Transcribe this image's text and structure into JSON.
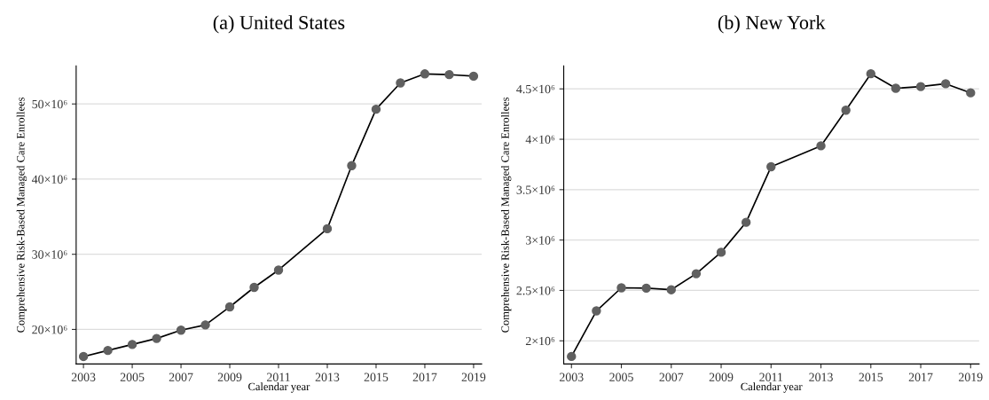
{
  "chart_data": [
    {
      "type": "line",
      "title": "(a) United States",
      "xlabel": "Calendar year",
      "ylabel": "Comprehensive Risk-Based Managed Care Enrollees",
      "x": [
        2003,
        2004,
        2005,
        2006,
        2007,
        2008,
        2009,
        2010,
        2011,
        2013,
        2014,
        2015,
        2016,
        2017,
        2018,
        2019
      ],
      "series": [
        {
          "color": "#606060",
          "values": [
            16400000,
            17200000,
            18000000,
            18800000,
            19900000,
            20600000,
            23000000,
            25600000,
            27900000,
            33400000,
            41800000,
            49300000,
            52800000,
            54000000,
            53900000,
            53700000
          ]
        }
      ],
      "xlim": [
        2002.7,
        2019.33
      ],
      "xticks": [
        2003,
        2005,
        2007,
        2009,
        2011,
        2013,
        2015,
        2017,
        2019
      ],
      "ylim": [
        15400000,
        55050000
      ],
      "yticks": [
        {
          "value": 20000000,
          "label": "20×10⁶"
        },
        {
          "value": 30000000,
          "label": "30×10⁶"
        },
        {
          "value": 40000000,
          "label": "40×10⁶"
        },
        {
          "value": 50000000,
          "label": "50×10⁶"
        }
      ],
      "grid": "y",
      "marker": "circle",
      "line_style": "solid",
      "legend": false
    },
    {
      "type": "line",
      "title": "(b) New York",
      "xlabel": "Calendar year",
      "ylabel": "Comprehensive Risk-Based Managed Care Enrollees",
      "x": [
        2003,
        2004,
        2005,
        2006,
        2007,
        2008,
        2009,
        2010,
        2011,
        2013,
        2014,
        2015,
        2016,
        2017,
        2018,
        2019
      ],
      "series": [
        {
          "color": "#606060",
          "values": [
            1845000,
            2297000,
            2526000,
            2523000,
            2507000,
            2666000,
            2879000,
            3176000,
            3727000,
            3935000,
            4288000,
            4650000,
            4506000,
            4523000,
            4551000,
            4461000
          ]
        }
      ],
      "xlim": [
        2002.69,
        2019.34
      ],
      "xticks": [
        2003,
        2005,
        2007,
        2009,
        2011,
        2013,
        2015,
        2017,
        2019
      ],
      "ylim": [
        1770000,
        4727000
      ],
      "yticks": [
        {
          "value": 2000000,
          "label": "2×10⁶"
        },
        {
          "value": 2500000,
          "label": "2.5×10⁶"
        },
        {
          "value": 3000000,
          "label": "3×10⁶"
        },
        {
          "value": 3500000,
          "label": "3.5×10⁶"
        },
        {
          "value": 4000000,
          "label": "4×10⁶"
        },
        {
          "value": 4500000,
          "label": "4.5×10⁶"
        }
      ],
      "grid": "y",
      "marker": "circle",
      "line_style": "solid",
      "legend": false
    }
  ]
}
